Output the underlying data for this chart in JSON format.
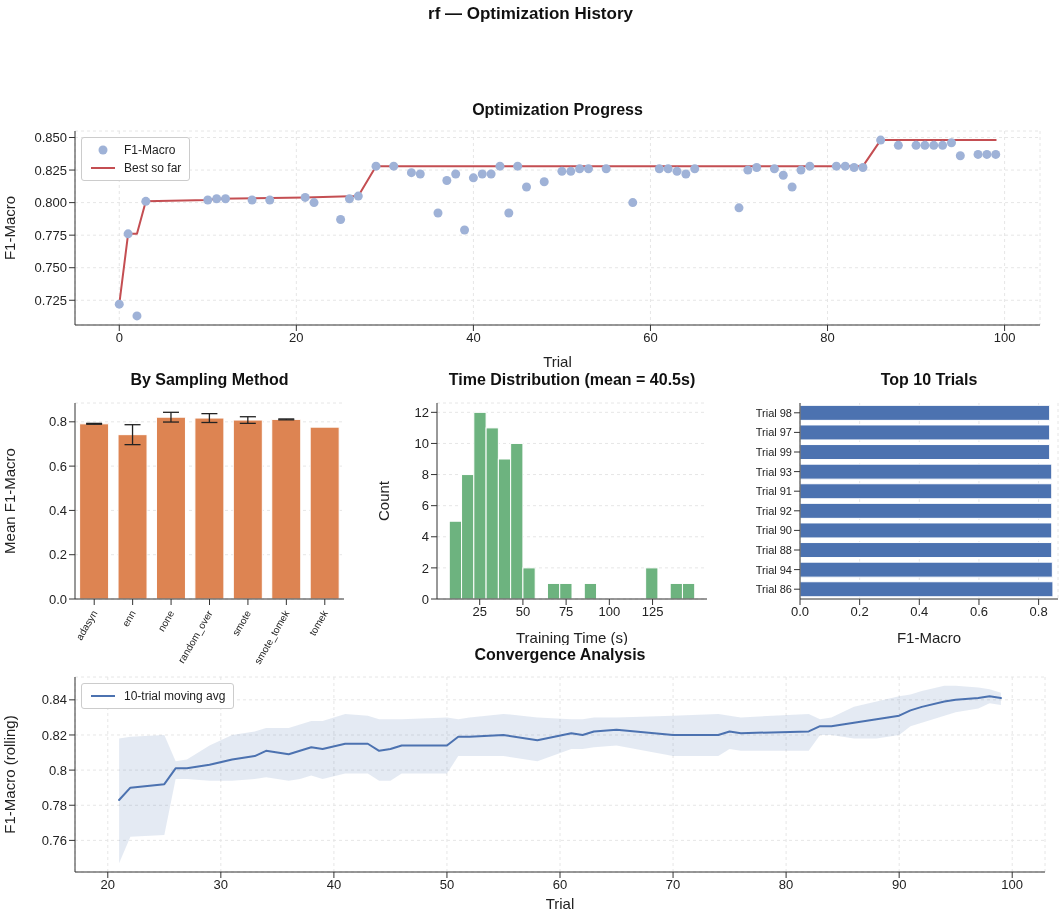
{
  "chart_data": [
    {
      "type": "scatter",
      "title": "Optimization Progress",
      "annotations": [
        "rf — Optimization History"
      ],
      "xlabel": "Trial",
      "ylabel": "F1-Macro",
      "xlim": [
        -5,
        104
      ],
      "xticks": [
        0,
        20,
        40,
        60,
        80,
        100
      ],
      "ylim": [
        0.706,
        0.855
      ],
      "yticks": [
        {
          "value": 0.725,
          "label": "0.725"
        },
        {
          "value": 0.75,
          "label": "0.750"
        },
        {
          "value": 0.775,
          "label": "0.775"
        },
        {
          "value": 0.8,
          "label": "0.800"
        },
        {
          "value": 0.825,
          "label": "0.825"
        },
        {
          "value": 0.85,
          "label": "0.850"
        }
      ],
      "grid": true,
      "legend": "top left",
      "series": [
        {
          "type": "scatter",
          "name": "F1-Macro",
          "color": "#9fb2d7",
          "marker": "circle",
          "x": [
            0,
            1,
            2,
            3,
            10,
            11,
            12,
            15,
            17,
            21,
            22,
            25,
            26,
            27,
            29,
            31,
            33,
            34,
            36,
            37,
            38,
            39,
            40,
            41,
            42,
            43,
            44,
            45,
            46,
            48,
            50,
            51,
            52,
            53,
            55,
            58,
            61,
            62,
            63,
            64,
            65,
            70,
            71,
            72,
            74,
            75,
            76,
            77,
            78,
            81,
            82,
            83,
            84,
            86,
            88,
            90,
            91,
            92,
            93,
            94,
            95,
            97,
            98,
            99
          ],
          "values": [
            0.722,
            0.776,
            0.713,
            0.801,
            0.802,
            0.803,
            0.803,
            0.802,
            0.802,
            0.804,
            0.8,
            0.787,
            0.803,
            0.805,
            0.828,
            0.828,
            0.823,
            0.822,
            0.792,
            0.817,
            0.822,
            0.779,
            0.819,
            0.822,
            0.822,
            0.828,
            0.792,
            0.828,
            0.812,
            0.816,
            0.824,
            0.824,
            0.826,
            0.826,
            0.826,
            0.8,
            0.826,
            0.826,
            0.824,
            0.822,
            0.826,
            0.796,
            0.825,
            0.827,
            0.826,
            0.821,
            0.812,
            0.825,
            0.828,
            0.828,
            0.828,
            0.827,
            0.827,
            0.848,
            0.844,
            0.844,
            0.844,
            0.844,
            0.844,
            0.846,
            0.836,
            0.837,
            0.837,
            0.837
          ]
        },
        {
          "type": "line",
          "name": "Best so far",
          "color": "#c44e52",
          "x": [
            0,
            1,
            2,
            3,
            10,
            11,
            21,
            27,
            29,
            84,
            86,
            99
          ],
          "values": [
            0.722,
            0.776,
            0.776,
            0.801,
            0.802,
            0.803,
            0.804,
            0.805,
            0.828,
            0.828,
            0.848,
            0.848
          ]
        }
      ]
    },
    {
      "type": "bar",
      "title": "By Sampling Method",
      "ylabel": "Mean F1-Macro",
      "categories": [
        "adasyn",
        "enn",
        "none",
        "random_over",
        "smote",
        "smote_tomek",
        "tomek"
      ],
      "values": [
        0.791,
        0.742,
        0.821,
        0.817,
        0.808,
        0.811,
        0.776
      ],
      "errors": [
        0.002,
        0.045,
        0.022,
        0.02,
        0.015,
        0.002,
        null
      ],
      "color": "#dd8452",
      "ylim": [
        0,
        0.885
      ],
      "yticks": [
        {
          "value": 0,
          "label": "0.0"
        },
        {
          "value": 0.2,
          "label": "0.2"
        },
        {
          "value": 0.4,
          "label": "0.4"
        },
        {
          "value": 0.6,
          "label": "0.6"
        },
        {
          "value": 0.8,
          "label": "0.8"
        }
      ],
      "grid": "y"
    },
    {
      "type": "histogram",
      "title": "Time Distribution (mean = 40.5s)",
      "xlabel": "Training Time (s)",
      "ylabel": "Count",
      "bins": [
        7.4,
        14.5,
        21.6,
        28.7,
        35.8,
        42.9,
        50.0,
        57.1,
        64.2,
        71.3,
        78.4,
        85.5,
        92.6,
        99.7,
        106.8,
        113.9,
        121.0,
        128.1,
        135.2,
        142.3,
        149.4
      ],
      "values": [
        5,
        8,
        12,
        11,
        9,
        10,
        2,
        0,
        1,
        1,
        0,
        1,
        0,
        0,
        0,
        0,
        2,
        0,
        1,
        1
      ],
      "color": "#6db37f",
      "xlim": [
        0.3,
        156.5
      ],
      "xticks": [
        25,
        50,
        75,
        100,
        125
      ],
      "ylim": [
        0,
        12.6
      ],
      "yticks": [
        0,
        2,
        4,
        6,
        8,
        10,
        12
      ],
      "grid": "y"
    },
    {
      "type": "bar",
      "orientation": "horizontal",
      "title": "Top 10 Trials",
      "xlabel": "F1-Macro",
      "categories": [
        "Trial 98",
        "Trial 97",
        "Trial 99",
        "Trial 93",
        "Trial 91",
        "Trial 92",
        "Trial 90",
        "Trial 88",
        "Trial 94",
        "Trial 86"
      ],
      "values": [
        0.837,
        0.837,
        0.837,
        0.844,
        0.844,
        0.844,
        0.844,
        0.844,
        0.846,
        0.848
      ],
      "color": "#4c72b0",
      "xlim": [
        0,
        0.865
      ],
      "xticks": [
        {
          "value": 0,
          "label": "0.0"
        },
        {
          "value": 0.2,
          "label": "0.2"
        },
        {
          "value": 0.4,
          "label": "0.4"
        },
        {
          "value": 0.6,
          "label": "0.6"
        },
        {
          "value": 0.8,
          "label": "0.8"
        }
      ],
      "grid": "x"
    },
    {
      "type": "line",
      "title": "Convergence Analysis",
      "xlabel": "Trial",
      "ylabel": "F1-Macro (rolling)",
      "xlim": [
        17.1,
        102.9
      ],
      "xticks": [
        20,
        30,
        40,
        50,
        60,
        70,
        80,
        90,
        100
      ],
      "ylim": [
        0.742,
        0.853
      ],
      "yticks": [
        0.76,
        0.78,
        0.8,
        0.82,
        0.84
      ],
      "grid": true,
      "legend": "top left",
      "series": [
        {
          "name": "10-trial moving avg",
          "color": "#4c72b0",
          "x": [
            21,
            22,
            25,
            26,
            27,
            29,
            31,
            33,
            34,
            36,
            37,
            38,
            39,
            41,
            43,
            44,
            45,
            46,
            50,
            51,
            52,
            55,
            58,
            61,
            62,
            63,
            65,
            70,
            74,
            75,
            76,
            82,
            83,
            84,
            86,
            88,
            90,
            91,
            92,
            94,
            95,
            97,
            98,
            99
          ],
          "values": [
            0.783,
            0.79,
            0.792,
            0.801,
            0.801,
            0.803,
            0.806,
            0.808,
            0.811,
            0.809,
            0.811,
            0.813,
            0.812,
            0.815,
            0.815,
            0.811,
            0.812,
            0.814,
            0.814,
            0.819,
            0.819,
            0.82,
            0.817,
            0.821,
            0.82,
            0.822,
            0.823,
            0.82,
            0.82,
            0.822,
            0.821,
            0.822,
            0.825,
            0.825,
            0.827,
            0.829,
            0.831,
            0.834,
            0.836,
            0.839,
            0.84,
            0.841,
            0.842,
            0.841
          ],
          "lower": [
            0.747,
            0.762,
            0.763,
            0.795,
            0.795,
            0.794,
            0.794,
            0.795,
            0.796,
            0.794,
            0.795,
            0.797,
            0.795,
            0.798,
            0.798,
            0.794,
            0.794,
            0.798,
            0.798,
            0.808,
            0.808,
            0.808,
            0.805,
            0.812,
            0.812,
            0.813,
            0.814,
            0.808,
            0.808,
            0.812,
            0.811,
            0.811,
            0.82,
            0.82,
            0.818,
            0.818,
            0.82,
            0.825,
            0.827,
            0.831,
            0.833,
            0.835,
            0.838,
            0.837
          ],
          "upper": [
            0.818,
            0.819,
            0.82,
            0.805,
            0.806,
            0.814,
            0.82,
            0.822,
            0.824,
            0.824,
            0.826,
            0.828,
            0.828,
            0.832,
            0.831,
            0.829,
            0.829,
            0.829,
            0.83,
            0.829,
            0.83,
            0.832,
            0.83,
            0.829,
            0.829,
            0.83,
            0.83,
            0.831,
            0.832,
            0.831,
            0.83,
            0.832,
            0.829,
            0.83,
            0.836,
            0.839,
            0.842,
            0.843,
            0.845,
            0.848,
            0.848,
            0.847,
            0.846,
            0.844
          ]
        }
      ]
    }
  ]
}
